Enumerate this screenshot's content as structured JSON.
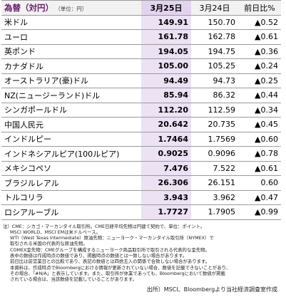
{
  "header": {
    "title": "為替（対円）",
    "unit": "（単位：円）",
    "columns": [
      "3月25日",
      "3月24日",
      "前日比%"
    ]
  },
  "table": {
    "rows": [
      [
        "米ドル",
        "149.91",
        "150.70",
        "▲0.52"
      ],
      [
        "ユーロ",
        "161.78",
        "162.78",
        "▲0.61"
      ],
      [
        "英ポンド",
        "194.05",
        "194.75",
        "▲0.36"
      ],
      [
        "カナダドル",
        "105.00",
        "105.25",
        "▲0.24"
      ],
      [
        "オーストラリア(豪)ドル",
        "94.49",
        "94.73",
        "▲0.25"
      ],
      [
        "NZ(ニュージーランド)ドル",
        "85.94",
        "86.32",
        "▲0.44"
      ],
      [
        "シンガポールドル",
        "112.20",
        "112.59",
        "▲0.34"
      ],
      [
        "中国人民元",
        "20.642",
        "20.735",
        "▲0.45"
      ],
      [
        "インドルピー",
        "1.7464",
        "1.7569",
        "▲0.60"
      ],
      [
        "インドネシアルピア(100ルピア)",
        "0.9025",
        "0.9096",
        "▲0.78"
      ],
      [
        "メキシコペソ",
        "7.476",
        "7.522",
        "▲0.61"
      ],
      [
        "ブラジルレアル",
        "26.306",
        "26.151",
        "0.60"
      ],
      [
        "トルコリラ",
        "3.943",
        "3.962",
        "▲0.47"
      ],
      [
        "ロシアルーブル",
        "1.7727",
        "1.7905",
        "▲0.99"
      ]
    ]
  },
  "notes": [
    "注）CME：シカゴ・マーカンタイル取引所。CME日経平均先物は円建て契約で、単位：ポイント。",
    "MSCI WORLD、MSCI EMは米ドルベース。",
    "WTI（West Texas Intermediate）原油先物：ニューヨーク・マーカンタイル取引所（NYMEX）で",
    "取引される米国の代表的な原油先物。",
    "COMEX金先物：CMEグループを構成するニューヨーク商品取引所で取引される代表的な金先物。",
    "表中の数値は作成時点の数値であり、掲載時点の数値とは一致しない場合があります。",
    "前日比は前営業日との比較であり、表記の数値とは四捨五入の関係で合致しない場合があります。",
    "本資料は、作成時点でBloombergにおける情報が更新されていない場合、数値を記載できないことがあり、",
    "その場合、「#N/A」と表示しています。また、取引所が休業であっても、Bloombergにおいて数値が掲載",
    "されている場合は、当該数値を記載していることがあります。"
  ],
  "source": "出所）MSCI、Bloombergより当社経済調査室作成"
}
